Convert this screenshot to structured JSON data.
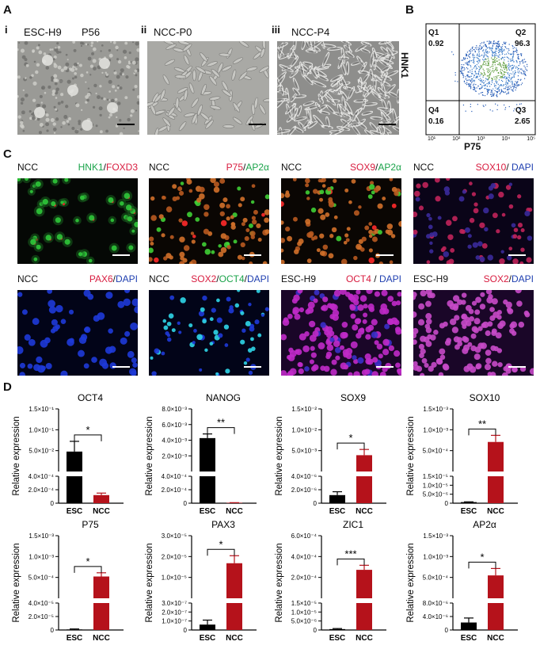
{
  "panel_A": {
    "letter": "A",
    "subpanels": [
      {
        "num": "i",
        "label1": "ESC-H9",
        "label2": "P56"
      },
      {
        "num": "ii",
        "label1": "NCC-P0",
        "label2": ""
      },
      {
        "num": "iii",
        "label1": "NCC-P4",
        "label2": ""
      }
    ]
  },
  "panel_B": {
    "letter": "B",
    "y_label": "HNK1",
    "x_label": "P75",
    "quadrants": [
      {
        "name": "Q1",
        "value": "0.92"
      },
      {
        "name": "Q2",
        "value": "96.3"
      },
      {
        "name": "Q3",
        "value": "2.65"
      },
      {
        "name": "Q4",
        "value": "0.16"
      }
    ],
    "ticks": [
      "10¹",
      "10²",
      "10³",
      "10⁴",
      "10⁵"
    ]
  },
  "panel_C": {
    "letter": "C",
    "images": [
      {
        "left": "NCC",
        "parts": [
          {
            "t": "HNK1",
            "c": "#1aa34a"
          },
          {
            "t": "/",
            "c": "#111"
          },
          {
            "t": "FOXD3",
            "c": "#d81c3f"
          }
        ],
        "bg": "#050805",
        "dots": "green"
      },
      {
        "left": "NCC",
        "parts": [
          {
            "t": "P75",
            "c": "#d81c3f"
          },
          {
            "t": "/",
            "c": "#111"
          },
          {
            "t": "AP2α",
            "c": "#1aa34a"
          }
        ],
        "bg": "#0a0603",
        "dots": "orange"
      },
      {
        "left": "NCC",
        "parts": [
          {
            "t": "SOX9",
            "c": "#d81c3f"
          },
          {
            "t": "/",
            "c": "#111"
          },
          {
            "t": "AP2α",
            "c": "#1aa34a"
          }
        ],
        "bg": "#0a0603",
        "dots": "orange"
      },
      {
        "left": "NCC",
        "parts": [
          {
            "t": "SOX10",
            "c": "#d81c3f"
          },
          {
            "t": "/ ",
            "c": "#111"
          },
          {
            "t": "DAPI",
            "c": "#1f3fb0"
          }
        ],
        "bg": "#0a0418",
        "dots": "redblue"
      },
      {
        "left": "NCC",
        "parts": [
          {
            "t": "PAX6",
            "c": "#d81c3f"
          },
          {
            "t": "/",
            "c": "#111"
          },
          {
            "t": "DAPI",
            "c": "#1f3fb0"
          }
        ],
        "bg": "#020418",
        "dots": "blue"
      },
      {
        "left": "NCC",
        "parts": [
          {
            "t": "SOX2",
            "c": "#d81c3f"
          },
          {
            "t": "/",
            "c": "#111"
          },
          {
            "t": "OCT4",
            "c": "#1aa34a"
          },
          {
            "t": "/",
            "c": "#111"
          },
          {
            "t": "DAPI",
            "c": "#1f3fb0"
          }
        ],
        "bg": "#020418",
        "dots": "bluecyan"
      },
      {
        "left": "ESC-H9",
        "parts": [
          {
            "t": "OCT4",
            "c": "#d81c3f"
          },
          {
            "t": " / ",
            "c": "#111"
          },
          {
            "t": "DAPI",
            "c": "#1f3fb0"
          }
        ],
        "bg": "#1a0628",
        "dots": "magenta"
      },
      {
        "left": "ESC-H9",
        "parts": [
          {
            "t": "SOX2",
            "c": "#d81c3f"
          },
          {
            "t": "/",
            "c": "#111"
          },
          {
            "t": "DAPI",
            "c": "#1f3fb0"
          }
        ],
        "bg": "#1a0628",
        "dots": "magentafield"
      }
    ]
  },
  "panel_D": {
    "letter": "D",
    "y_label": "Relative expression",
    "colors": {
      "ESC": "#000000",
      "NCC": "#b5121b"
    }
  },
  "chart_data": [
    {
      "type": "bar",
      "title": "OCT4",
      "categories": [
        "ESC",
        "NCC"
      ],
      "values": [
        0.075,
        0.00012
      ],
      "errors": [
        0.018,
        3e-05
      ],
      "significance": "*",
      "ylabel": "Relative expression",
      "lower": {
        "ticks": [
          "0",
          "2.0×10⁻⁴",
          "4.0×10⁻⁴"
        ],
        "max": 0.0004
      },
      "upper": {
        "ticks": [
          "5.0×10⁻²",
          "1.0×10⁻¹",
          "1.5×10⁻¹"
        ],
        "min": 0.04,
        "max": 0.15
      }
    },
    {
      "type": "bar",
      "title": "NANOG",
      "categories": [
        "ESC",
        "NCC"
      ],
      "values": [
        0.0045,
        6e-06
      ],
      "errors": [
        0.0005,
        2e-06
      ],
      "significance": "**",
      "ylabel": "Relative expression",
      "lower": {
        "ticks": [
          "0",
          "2.0×10⁻⁴",
          "4.0×10⁻⁴"
        ],
        "max": 0.0004
      },
      "upper": {
        "ticks": [
          "2.0×10⁻³",
          "4.0×10⁻³",
          "6.0×10⁻³",
          "8.0×10⁻³"
        ],
        "min": 0.0005,
        "max": 0.008
      }
    },
    {
      "type": "bar",
      "title": "SOX9",
      "categories": [
        "ESC",
        "NCC"
      ],
      "values": [
        1.2e-06,
        0.0045
      ],
      "errors": [
        5e-07,
        0.0013
      ],
      "significance": "*",
      "ylabel": "Relative expression",
      "lower": {
        "ticks": [
          "0",
          "2.0×10⁻⁶",
          "4.0×10⁻⁶"
        ],
        "max": 4e-06
      },
      "upper": {
        "ticks": [
          "5.0×10⁻³",
          "1.0×10⁻²",
          "1.5×10⁻²"
        ],
        "min": 0.0008,
        "max": 0.015
      }
    },
    {
      "type": "bar",
      "title": "SOX10",
      "categories": [
        "ESC",
        "NCC"
      ],
      "values": [
        6e-07,
        0.00075
      ],
      "errors": [
        1.5e-07,
        0.00015
      ],
      "significance": "**",
      "ylabel": "Relative expression",
      "lower": {
        "ticks": [
          "0",
          "5.0×10⁻⁶",
          "1.0×10⁻⁵",
          "1.5×10⁻⁵"
        ],
        "max": 1.5e-05
      },
      "upper": {
        "ticks": [
          "5.0×10⁻⁴",
          "1.0×10⁻³",
          "1.5×10⁻³"
        ],
        "min": 8e-05,
        "max": 0.0015
      }
    },
    {
      "type": "bar",
      "title": "P75",
      "categories": [
        "ESC",
        "NCC"
      ],
      "values": [
        8e-07,
        0.00062
      ],
      "errors": [
        7e-07,
        8e-05
      ],
      "significance": "*",
      "ylabel": "Relative expression",
      "lower": {
        "ticks": [
          "0",
          "2.0×10⁻⁵",
          "4.0×10⁻⁵"
        ],
        "max": 4e-05
      },
      "upper": {
        "ticks": [
          "5.0×10⁻⁴",
          "1.0×10⁻³",
          "1.5×10⁻³"
        ],
        "min": 0.00015,
        "max": 0.0015
      }
    },
    {
      "type": "bar",
      "title": "PAX3",
      "categories": [
        "ESC",
        "NCC"
      ],
      "values": [
        6e-08,
        1.9e-05
      ],
      "errors": [
        5e-08,
        3e-06
      ],
      "significance": "*",
      "ylabel": "Relative expression",
      "lower": {
        "ticks": [
          "0",
          "1.0×10⁻⁷",
          "2.0×10⁻⁷",
          "3.0×10⁻⁷"
        ],
        "max": 3e-07
      },
      "upper": {
        "ticks": [
          "1.0×10⁻⁵",
          "2.0×10⁻⁵",
          "3.0×10⁻⁵"
        ],
        "min": 5e-06,
        "max": 3e-05
      }
    },
    {
      "type": "bar",
      "title": "ZIC1",
      "categories": [
        "ESC",
        "NCC"
      ],
      "values": [
        5e-07,
        0.0003
      ],
      "errors": [
        3e-07,
        4e-05
      ],
      "significance": "***",
      "ylabel": "Relative expression",
      "lower": {
        "ticks": [
          "0",
          "5.0×10⁻⁶",
          "1.0×10⁻⁵",
          "1.5×10⁻⁵"
        ],
        "max": 1.5e-05
      },
      "upper": {
        "ticks": [
          "2.0×10⁻⁴",
          "4.0×10⁻⁴",
          "6.0×10⁻⁴"
        ],
        "min": 5e-05,
        "max": 0.0006
      }
    },
    {
      "type": "bar",
      "title": "AP2α",
      "categories": [
        "ESC",
        "NCC"
      ],
      "values": [
        2.5e-06,
        0.00058
      ],
      "errors": [
        1.5e-06,
        0.00016
      ],
      "significance": "*",
      "ylabel": "Relative expression",
      "lower": {
        "ticks": [
          "0",
          "4.0×10⁻⁶",
          "8.0×10⁻⁶"
        ],
        "max": 9e-06
      },
      "upper": {
        "ticks": [
          "5.0×10⁻⁴",
          "1.0×10⁻³",
          "1.5×10⁻³"
        ],
        "min": 5e-05,
        "max": 0.0015
      }
    }
  ]
}
